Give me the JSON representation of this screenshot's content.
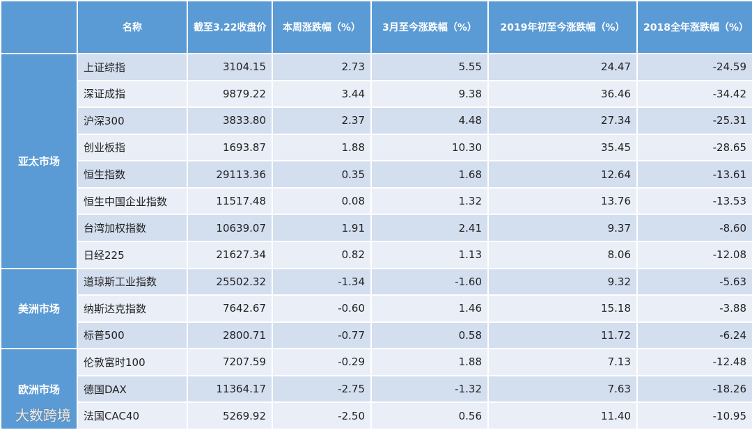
{
  "table": {
    "header": [
      "名称",
      "截至3.22收盘价",
      "本周涨跌幅（%）",
      "3月至今涨跌幅（%）",
      "2019年初至今涨跌幅（%）",
      "2018全年涨跌幅（%）"
    ],
    "groups": [
      {
        "name": "亚太市场",
        "rows": [
          [
            "上证综指",
            "3104.15",
            "2.73",
            "5.55",
            "24.47",
            "-24.59"
          ],
          [
            "深证成指",
            "9879.22",
            "3.44",
            "9.38",
            "36.46",
            "-34.42"
          ],
          [
            "沪深300",
            "3833.80",
            "2.37",
            "4.48",
            "27.34",
            "-25.31"
          ],
          [
            "创业板指",
            "1693.87",
            "1.88",
            "10.30",
            "35.45",
            "-28.65"
          ],
          [
            "恒生指数",
            "29113.36",
            "0.35",
            "1.68",
            "12.64",
            "-13.61"
          ],
          [
            "恒生中国企业指数",
            "11517.48",
            "0.08",
            "1.32",
            "13.76",
            "-13.53"
          ],
          [
            "台湾加权指数",
            "10639.07",
            "1.91",
            "2.41",
            "9.37",
            "-8.60"
          ],
          [
            "日经225",
            "21627.34",
            "0.82",
            "1.13",
            "8.06",
            "-12.08"
          ]
        ]
      },
      {
        "name": "美洲市场",
        "rows": [
          [
            "道琼斯工业指数",
            "25502.32",
            "-1.34",
            "-1.60",
            "9.32",
            "-5.63"
          ],
          [
            "纳斯达克指数",
            "7642.67",
            "-0.60",
            "1.46",
            "15.18",
            "-3.88"
          ],
          [
            "标普500",
            "2800.71",
            "-0.77",
            "0.58",
            "11.72",
            "-6.24"
          ]
        ]
      },
      {
        "name": "欧洲市场",
        "rows": [
          [
            "伦敦富时100",
            "7207.59",
            "-0.29",
            "1.88",
            "7.13",
            "-12.48"
          ],
          [
            "德国DAX",
            "11364.17",
            "-2.75",
            "-1.32",
            "7.63",
            "-18.26"
          ],
          [
            "法国CAC40",
            "5269.92",
            "-2.50",
            "0.56",
            "11.40",
            "-10.95"
          ]
        ]
      }
    ]
  },
  "watermark": "大数跨境"
}
